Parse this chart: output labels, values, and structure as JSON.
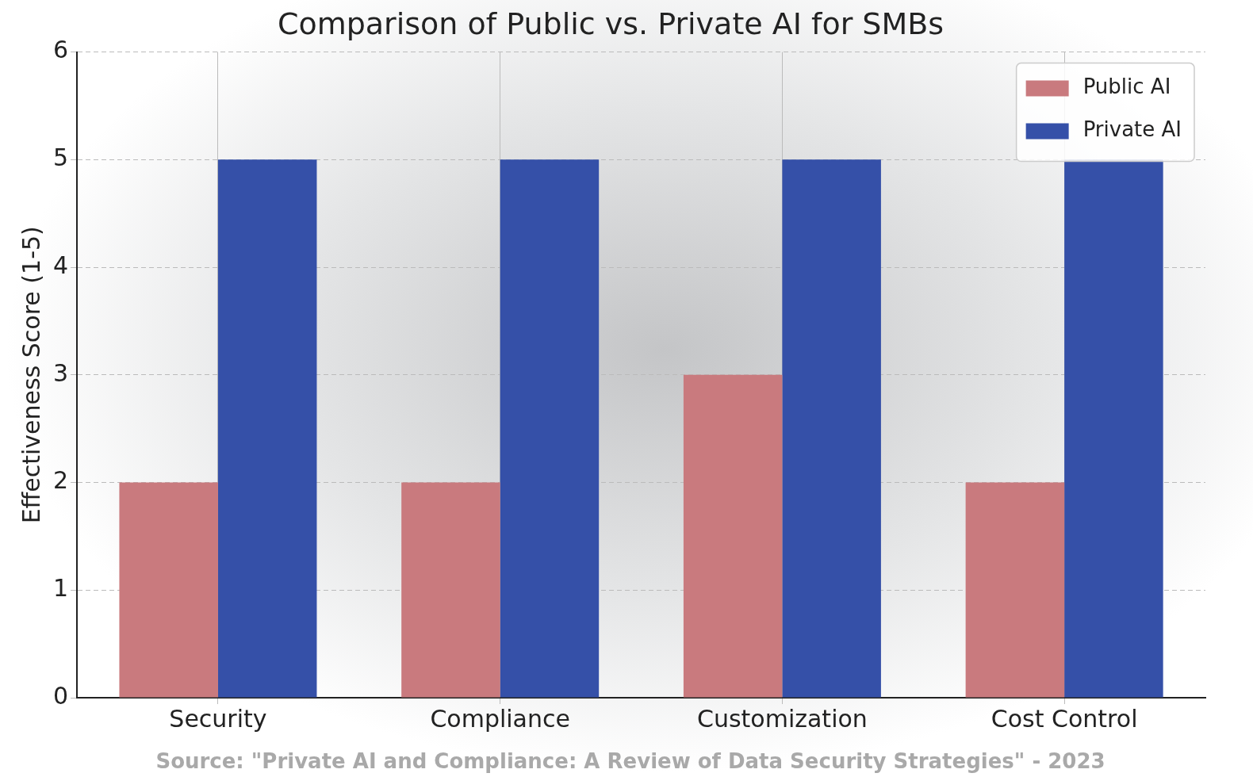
{
  "chart_data": {
    "type": "bar",
    "title": "Comparison of Public vs. Private AI for SMBs",
    "ylabel": "Effectiveness Score (1-5)",
    "categories": [
      "Security",
      "Compliance",
      "Customization",
      "Cost Control"
    ],
    "series": [
      {
        "name": "Public AI",
        "color": "#c97a7e",
        "values": [
          2,
          2,
          3,
          2
        ]
      },
      {
        "name": "Private AI",
        "color": "#3550a8",
        "values": [
          5,
          5,
          5,
          5
        ]
      }
    ],
    "ylim": [
      0,
      6
    ],
    "yticks": [
      0,
      1,
      2,
      3,
      4,
      5,
      6
    ],
    "grid": true,
    "legend": "top right",
    "annotations": [
      "Source: \"Private AI and Compliance: A Review of Data Security Strategies\" - 2023"
    ]
  }
}
